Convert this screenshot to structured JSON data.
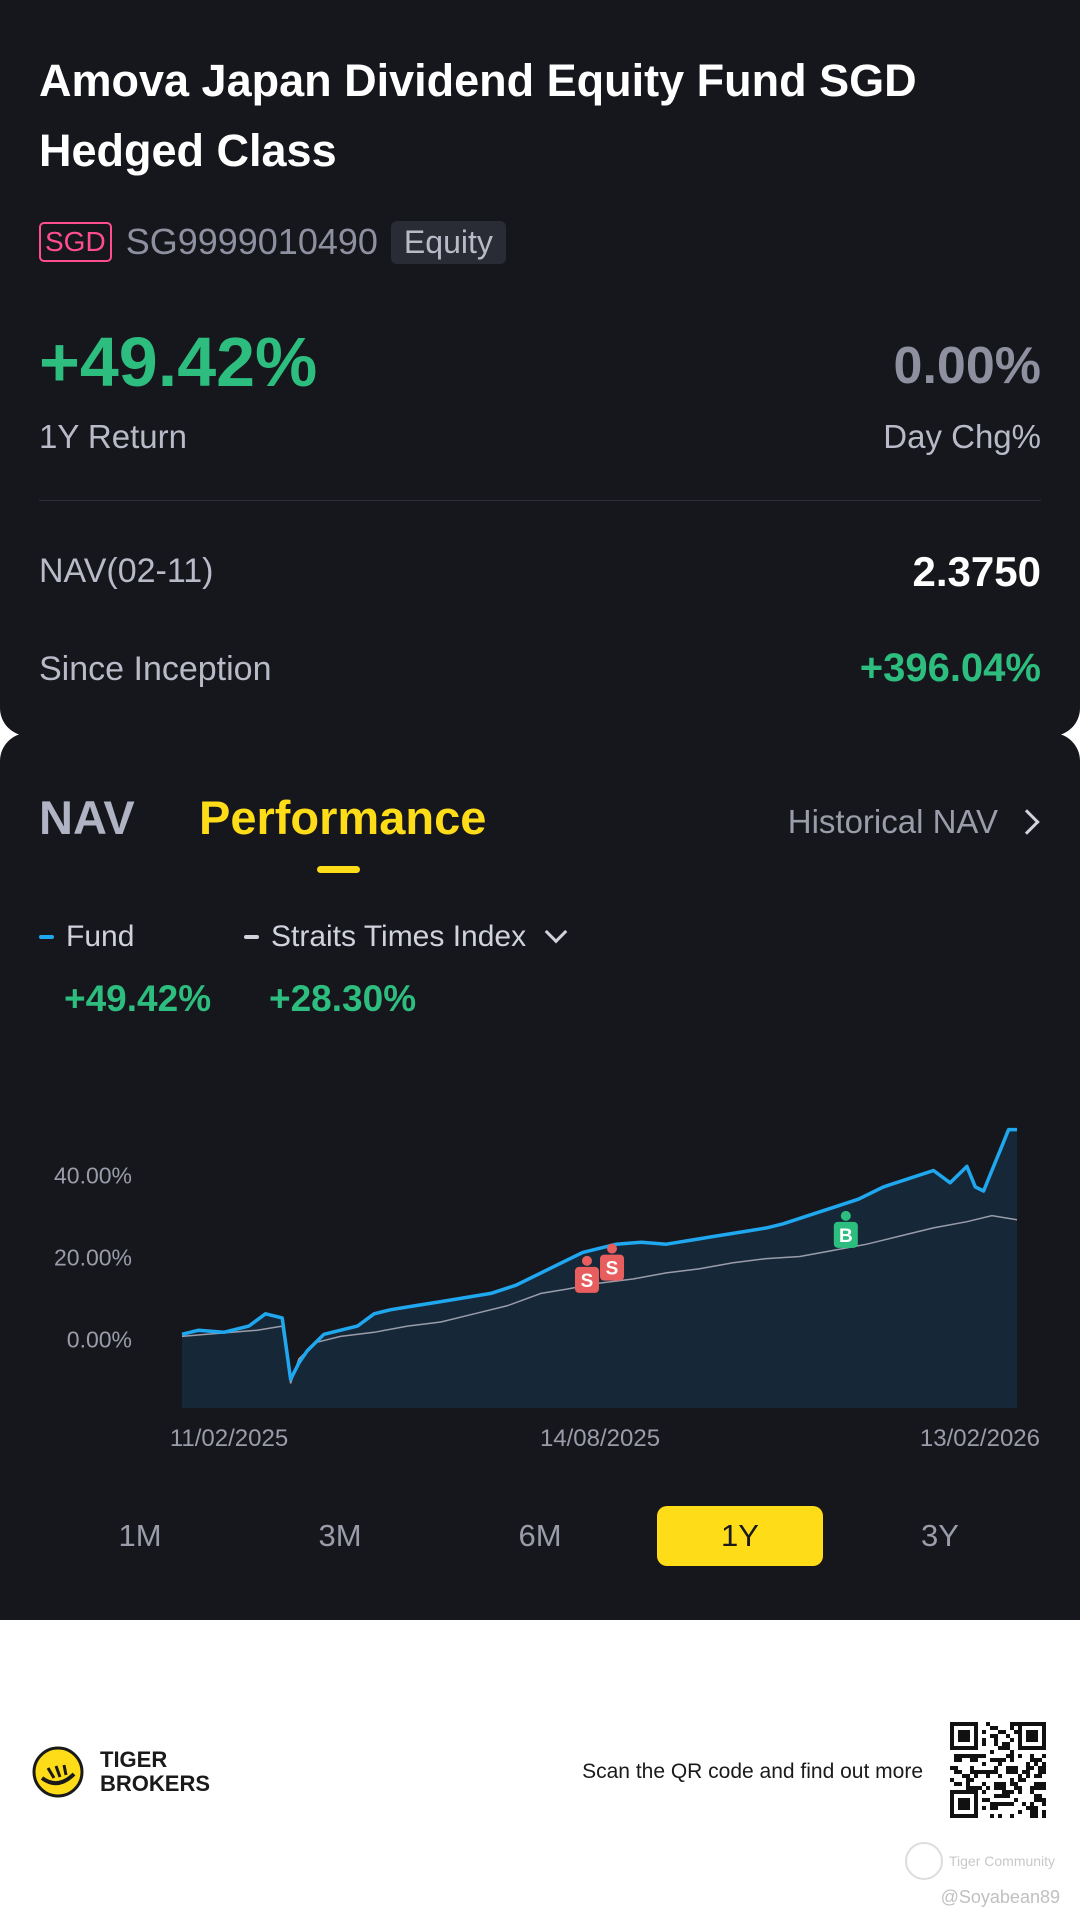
{
  "fund": {
    "name": "Amova Japan Dividend Equity Fund SGD Hedged Class",
    "currency": "SGD",
    "isin": "SG9999010490",
    "asset_class": "Equity"
  },
  "returns": {
    "one_year_value": "+49.42%",
    "one_year_label": "1Y Return",
    "day_change_value": "0.00%",
    "day_change_label": "Day Chg%",
    "nav_label": "NAV(02-11)",
    "nav_value": "2.3750",
    "since_inception_label": "Since Inception",
    "since_inception_value": "+396.04%"
  },
  "tabs": {
    "nav": "NAV",
    "performance": "Performance",
    "active": "Performance",
    "historical_link": "Historical NAV"
  },
  "legend": {
    "fund_label": "Fund",
    "fund_value": "+49.42%",
    "index_label": "Straits Times Index",
    "index_value": "+28.30%"
  },
  "periods": [
    "1M",
    "3M",
    "6M",
    "1Y",
    "3Y"
  ],
  "active_period": "1Y",
  "colors": {
    "fund_line": "#1fa8f0",
    "index_line": "#9a9caa",
    "positive": "#2dbd7e",
    "accent": "#ffdc18",
    "sell_marker": "#e85d5d",
    "buy_marker": "#2dbd7e"
  },
  "chart_data": {
    "type": "line",
    "x_tick_labels": [
      "11/02/2025",
      "14/08/2025",
      "13/02/2026"
    ],
    "y_tick_labels": [
      "40.00%",
      "20.00%",
      "0.00%"
    ],
    "y_ticks": [
      40,
      20,
      0
    ],
    "ylim": [
      -17,
      68
    ],
    "series": [
      {
        "name": "Fund",
        "x": [
          0,
          2,
          5,
          8,
          10,
          12,
          13,
          14,
          15,
          16,
          17,
          19,
          21,
          23,
          25,
          28,
          31,
          34,
          37,
          40,
          43,
          46,
          48,
          50,
          52,
          55,
          58,
          61,
          64,
          67,
          70,
          72,
          75,
          78,
          81,
          84,
          87,
          90,
          92,
          94,
          95,
          96,
          97,
          98,
          99,
          100
        ],
        "values": [
          1,
          2,
          1.5,
          3,
          6,
          5,
          -10,
          -6,
          -3,
          -1,
          1,
          2,
          3,
          6,
          7,
          8,
          9,
          10,
          11,
          13,
          16,
          19,
          21,
          22,
          23,
          23.5,
          23,
          24,
          25,
          26,
          27,
          28,
          30,
          32,
          34,
          37,
          39,
          41,
          38,
          42,
          37,
          36,
          41,
          46,
          51,
          51
        ]
      },
      {
        "name": "Straits Times Index",
        "x": [
          0,
          3,
          6,
          9,
          12,
          13,
          14,
          16,
          19,
          23,
          27,
          31,
          35,
          39,
          43,
          46,
          50,
          54,
          58,
          62,
          66,
          70,
          74,
          78,
          82,
          86,
          90,
          94,
          97,
          100
        ],
        "values": [
          0.5,
          1,
          1.5,
          2,
          3,
          -11,
          -5,
          -1,
          0.5,
          1.5,
          3,
          4,
          6,
          8,
          11,
          12,
          13.5,
          14.5,
          16,
          17,
          18.5,
          19.5,
          20,
          21.5,
          23,
          25,
          27,
          28.5,
          30,
          29
        ]
      }
    ],
    "markers": [
      {
        "label": "S",
        "x": 48.5,
        "y": 16
      },
      {
        "label": "S",
        "x": 51.5,
        "y": 19
      },
      {
        "label": "B",
        "x": 79.5,
        "y": 27
      }
    ]
  },
  "footer": {
    "brand_line1": "TIGER",
    "brand_line2": "BROKERS",
    "cta": "Scan the QR code and find out more",
    "watermark": "Tiger Community",
    "handle": "@Soyabean89"
  }
}
